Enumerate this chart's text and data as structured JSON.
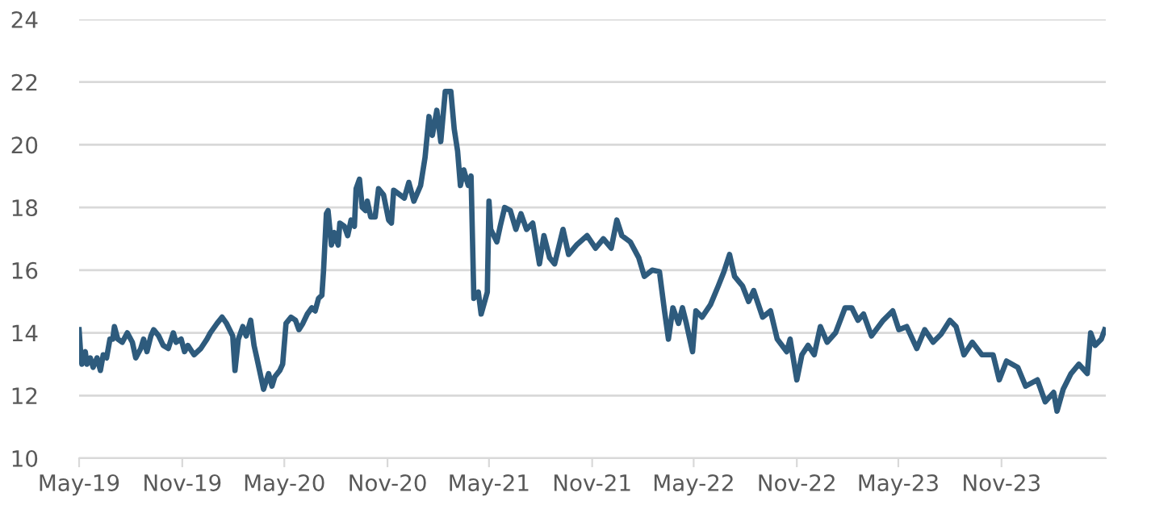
{
  "chart_data": {
    "type": "line",
    "grid": "y",
    "legend": false,
    "xlim": [
      "2019-05-01",
      "2024-05-05"
    ],
    "ylim": [
      10,
      24
    ],
    "yticks": [
      10,
      12,
      14,
      16,
      18,
      20,
      22,
      24
    ],
    "xticks": [
      {
        "value": "2019-05-01",
        "label": "May-19"
      },
      {
        "value": "2019-11-01",
        "label": "Nov-19"
      },
      {
        "value": "2020-05-01",
        "label": "May-20"
      },
      {
        "value": "2020-11-01",
        "label": "Nov-20"
      },
      {
        "value": "2021-05-01",
        "label": "May-21"
      },
      {
        "value": "2021-11-01",
        "label": "Nov-21"
      },
      {
        "value": "2022-05-01",
        "label": "May-22"
      },
      {
        "value": "2022-11-01",
        "label": "Nov-22"
      },
      {
        "value": "2023-05-01",
        "label": "May-23"
      },
      {
        "value": "2023-11-01",
        "label": "Nov-23"
      }
    ],
    "x": [
      "2019-05-01",
      "2019-05-04",
      "2019-05-06",
      "2019-05-12",
      "2019-05-15",
      "2019-05-21",
      "2019-05-26",
      "2019-06-02",
      "2019-06-08",
      "2019-06-13",
      "2019-06-19",
      "2019-06-25",
      "2019-06-30",
      "2019-07-03",
      "2019-07-09",
      "2019-07-17",
      "2019-07-26",
      "2019-08-04",
      "2019-08-10",
      "2019-08-19",
      "2019-08-24",
      "2019-08-30",
      "2019-09-06",
      "2019-09-11",
      "2019-09-20",
      "2019-09-28",
      "2019-10-07",
      "2019-10-16",
      "2019-10-21",
      "2019-10-30",
      "2019-11-05",
      "2019-11-11",
      "2019-11-22",
      "2019-12-04",
      "2019-12-15",
      "2019-12-21",
      "2020-01-02",
      "2020-01-11",
      "2020-01-19",
      "2020-01-30",
      "2020-02-03",
      "2020-02-09",
      "2020-02-17",
      "2020-02-23",
      "2020-03-02",
      "2020-03-08",
      "2020-03-13",
      "2020-03-19",
      "2020-03-25",
      "2020-04-03",
      "2020-04-09",
      "2020-04-14",
      "2020-04-23",
      "2020-04-28",
      "2020-05-04",
      "2020-05-13",
      "2020-05-21",
      "2020-05-27",
      "2020-06-03",
      "2020-06-11",
      "2020-06-19",
      "2020-06-25",
      "2020-07-01",
      "2020-07-07",
      "2020-07-10",
      "2020-07-15",
      "2020-07-18",
      "2020-07-24",
      "2020-07-29",
      "2020-08-05",
      "2020-08-08",
      "2020-08-16",
      "2020-08-22",
      "2020-08-28",
      "2020-09-03",
      "2020-09-06",
      "2020-09-12",
      "2020-09-17",
      "2020-09-23",
      "2020-09-26",
      "2020-10-02",
      "2020-10-10",
      "2020-10-16",
      "2020-10-25",
      "2020-11-03",
      "2020-11-08",
      "2020-11-12",
      "2020-12-01",
      "2020-12-09",
      "2020-12-18",
      "2020-12-30",
      "2021-01-07",
      "2021-01-14",
      "2021-01-20",
      "2021-01-28",
      "2021-02-04",
      "2021-02-12",
      "2021-02-22",
      "2021-02-28",
      "2021-03-06",
      "2021-03-11",
      "2021-03-17",
      "2021-03-25",
      "2021-03-30",
      "2021-04-04",
      "2021-04-12",
      "2021-04-17",
      "2021-04-28",
      "2021-05-01",
      "2021-05-04",
      "2021-05-15",
      "2021-05-21",
      "2021-05-29",
      "2021-06-08",
      "2021-06-18",
      "2021-06-27",
      "2021-07-07",
      "2021-07-18",
      "2021-07-30",
      "2021-08-07",
      "2021-08-17",
      "2021-08-26",
      "2021-09-10",
      "2021-09-20",
      "2021-10-04",
      "2021-10-23",
      "2021-11-07",
      "2021-11-21",
      "2021-12-05",
      "2021-12-15",
      "2021-12-24",
      "2022-01-08",
      "2022-01-23",
      "2022-02-02",
      "2022-02-16",
      "2022-03-01",
      "2022-03-10",
      "2022-03-17",
      "2022-03-25",
      "2022-04-04",
      "2022-04-11",
      "2022-04-18",
      "2022-04-29",
      "2022-05-05",
      "2022-05-16",
      "2022-05-31",
      "2022-06-14",
      "2022-06-24",
      "2022-07-04",
      "2022-07-13",
      "2022-07-27",
      "2022-08-07",
      "2022-08-16",
      "2022-09-01",
      "2022-09-15",
      "2022-09-27",
      "2022-10-14",
      "2022-10-20",
      "2022-11-01",
      "2022-11-10",
      "2022-11-21",
      "2022-12-02",
      "2022-12-13",
      "2022-12-25",
      "2023-01-09",
      "2023-01-26",
      "2023-02-07",
      "2023-02-18",
      "2023-02-28",
      "2023-03-14",
      "2023-04-04",
      "2023-04-21",
      "2023-05-02",
      "2023-05-16",
      "2023-06-03",
      "2023-06-17",
      "2023-07-02",
      "2023-07-16",
      "2023-08-01",
      "2023-08-12",
      "2023-08-26",
      "2023-09-10",
      "2023-09-27",
      "2023-10-17",
      "2023-10-28",
      "2023-11-10",
      "2023-11-30",
      "2023-12-14",
      "2024-01-04",
      "2024-01-18",
      "2024-02-02",
      "2024-02-08",
      "2024-02-19",
      "2024-03-04",
      "2024-03-18",
      "2024-04-02",
      "2024-04-08",
      "2024-04-16",
      "2024-04-27",
      "2024-05-03"
    ],
    "series": [
      {
        "color": "#2e5b7d",
        "values": [
          14.1,
          13.3,
          13.0,
          13.4,
          13.0,
          13.2,
          12.9,
          13.2,
          12.8,
          13.3,
          13.2,
          13.8,
          13.8,
          14.2,
          13.8,
          13.7,
          14.0,
          13.7,
          13.2,
          13.5,
          13.8,
          13.4,
          13.9,
          14.1,
          13.9,
          13.6,
          13.5,
          14.0,
          13.7,
          13.8,
          13.4,
          13.6,
          13.3,
          13.5,
          13.8,
          14.0,
          14.3,
          14.5,
          14.3,
          13.9,
          12.8,
          13.8,
          14.2,
          13.9,
          14.4,
          13.6,
          13.2,
          12.7,
          12.2,
          12.7,
          12.3,
          12.6,
          12.8,
          13.0,
          14.3,
          14.5,
          14.4,
          14.1,
          14.3,
          14.6,
          14.8,
          14.7,
          15.1,
          15.2,
          16.0,
          17.8,
          17.9,
          16.8,
          17.2,
          16.8,
          17.5,
          17.4,
          17.1,
          17.6,
          17.4,
          18.6,
          18.9,
          18.0,
          17.9,
          18.2,
          17.7,
          17.7,
          18.6,
          18.4,
          17.6,
          17.5,
          18.55,
          18.3,
          18.8,
          18.2,
          18.7,
          19.6,
          20.9,
          20.3,
          21.1,
          20.1,
          21.7,
          21.7,
          20.5,
          19.8,
          18.7,
          19.2,
          18.7,
          19.0,
          15.1,
          15.3,
          14.6,
          15.3,
          18.2,
          17.3,
          16.9,
          17.4,
          18.0,
          17.9,
          17.3,
          17.8,
          17.3,
          17.5,
          16.2,
          17.1,
          16.4,
          16.2,
          17.3,
          16.5,
          16.8,
          17.1,
          16.7,
          17.0,
          16.7,
          17.6,
          17.1,
          16.9,
          16.4,
          15.8,
          16.0,
          15.95,
          14.7,
          13.8,
          14.8,
          14.3,
          14.8,
          14.3,
          13.4,
          14.7,
          14.5,
          14.9,
          15.5,
          15.95,
          16.5,
          15.8,
          15.5,
          15.0,
          15.35,
          14.5,
          14.7,
          13.8,
          13.4,
          13.8,
          12.5,
          13.3,
          13.6,
          13.3,
          14.2,
          13.7,
          14.0,
          14.8,
          14.8,
          14.4,
          14.6,
          13.9,
          14.4,
          14.7,
          14.1,
          14.2,
          13.5,
          14.1,
          13.7,
          13.95,
          14.4,
          14.2,
          13.3,
          13.7,
          13.3,
          13.3,
          12.5,
          13.1,
          12.9,
          12.3,
          12.5,
          11.8,
          12.1,
          11.5,
          12.2,
          12.7,
          13.0,
          12.7,
          14.0,
          13.6,
          13.8,
          14.1
        ]
      }
    ]
  }
}
